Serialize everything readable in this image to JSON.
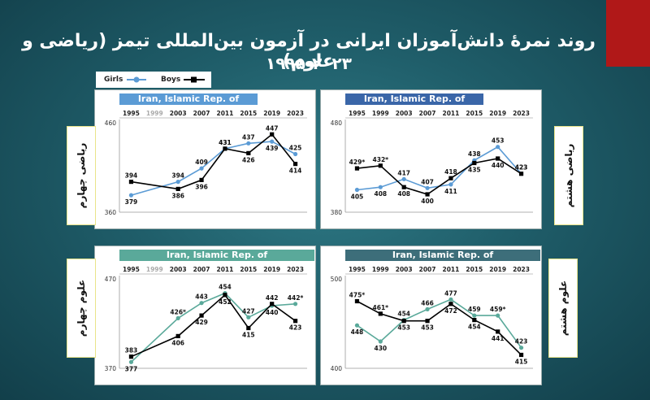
{
  "title_line1": "روند نمرۀ دانش‌آموزان ایرانی در آزمون بین‌المللی تیمز (ریاضی و علوم)",
  "title_line2": "۱۹۹۵-۲۰۲۳",
  "legend": {
    "girls": "Girls",
    "boys": "Boys"
  },
  "colors": {
    "girls_math": "#5b9bd5",
    "girls_sci": "#5aa99a",
    "boys": "#000000",
    "accent": "#b01818"
  },
  "chart_data": [
    {
      "type": "line",
      "id": "math4",
      "header": "Iran, Islamic Rep. of",
      "side_label": "ریاضی چهارم",
      "x": [
        "1995",
        "1999",
        "2003",
        "2007",
        "2011",
        "2015",
        "2019",
        "2023"
      ],
      "ylim": [
        360,
        460
      ],
      "yticks": [
        360,
        460
      ],
      "series": [
        {
          "name": "Girls",
          "values": [
            379,
            null,
            394,
            409,
            431,
            437,
            439,
            425
          ]
        },
        {
          "name": "Boys",
          "values": [
            394,
            null,
            386,
            396,
            431,
            426,
            447,
            414
          ]
        }
      ]
    },
    {
      "type": "line",
      "id": "math8",
      "header": "Iran, Islamic Rep. of",
      "side_label": "ریاضی هشتم",
      "x": [
        "1995",
        "1999",
        "2003",
        "2007",
        "2011",
        "2015",
        "2019",
        "2023"
      ],
      "ylim": [
        380,
        480
      ],
      "yticks": [
        380,
        480
      ],
      "series": [
        {
          "name": "Girls",
          "values": [
            405,
            408,
            417,
            407,
            411,
            438,
            453,
            423
          ]
        },
        {
          "name": "Boys",
          "values": [
            429,
            432,
            408,
            400,
            418,
            435,
            440,
            423
          ]
        }
      ]
    },
    {
      "type": "line",
      "id": "sci4",
      "header": "Iran, Islamic Rep. of",
      "side_label": "علوم چهارم",
      "x": [
        "1995",
        "1999",
        "2003",
        "2007",
        "2011",
        "2015",
        "2019",
        "2023"
      ],
      "ylim": [
        370,
        470
      ],
      "yticks": [
        370,
        470
      ],
      "series": [
        {
          "name": "Girls",
          "values": [
            377,
            null,
            426,
            443,
            454,
            427,
            440,
            442
          ]
        },
        {
          "name": "Boys",
          "values": [
            383,
            null,
            406,
            429,
            452,
            415,
            442,
            423
          ]
        }
      ]
    },
    {
      "type": "line",
      "id": "sci8",
      "header": "Iran, Islamic Rep. of",
      "side_label": "علوم هشتم",
      "x": [
        "1995",
        "1999",
        "2003",
        "2007",
        "2011",
        "2015",
        "2019",
        "2023"
      ],
      "ylim": [
        400,
        500
      ],
      "yticks": [
        400,
        500
      ],
      "series": [
        {
          "name": "Girls",
          "values": [
            448,
            430,
            454,
            466,
            477,
            459,
            459,
            423
          ]
        },
        {
          "name": "Boys",
          "values": [
            475,
            461,
            453,
            453,
            472,
            454,
            441,
            415
          ]
        }
      ]
    }
  ],
  "labels": {
    "math4": {
      "Girls": [
        "379",
        null,
        "394",
        "409",
        "431",
        "437",
        "439",
        "425"
      ],
      "Boys": [
        "394",
        null,
        "386",
        "396",
        "431",
        "426",
        "447",
        "414"
      ]
    },
    "math8": {
      "Girls": [
        "405",
        "408",
        "417",
        "407",
        "411",
        "438",
        "453",
        "423"
      ],
      "Boys": [
        "429*",
        "432*",
        "408",
        "400",
        "418",
        "435",
        "440",
        "423"
      ]
    },
    "sci4": {
      "Girls": [
        "377",
        null,
        "426*",
        "443",
        "454",
        "427",
        "440",
        "442*"
      ],
      "Boys": [
        "383",
        null,
        "406",
        "429",
        "452",
        "415",
        "442",
        "423"
      ]
    },
    "sci8": {
      "Girls": [
        "448",
        "430",
        "454",
        "466",
        "477",
        "459",
        "459*",
        "423"
      ],
      "Boys": [
        "475*",
        "461*",
        "453",
        "453",
        "472",
        "454",
        "441",
        "415"
      ]
    }
  }
}
